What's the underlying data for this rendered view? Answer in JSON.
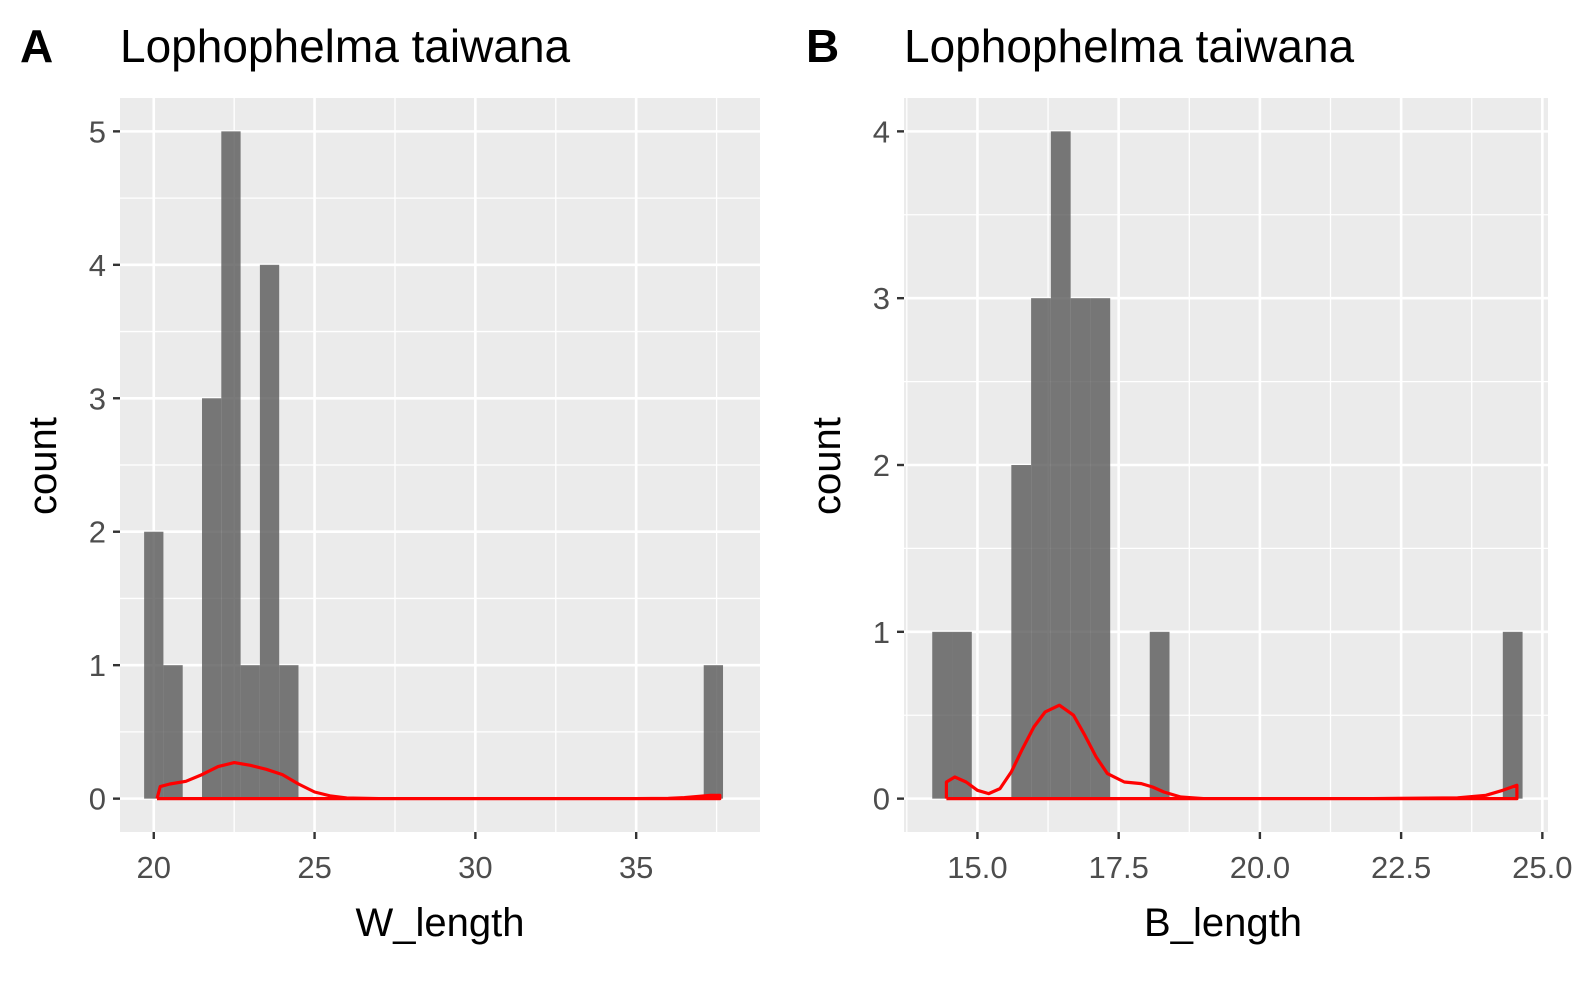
{
  "chart_data": [
    {
      "type": "bar",
      "panel_tag": "A",
      "title": "Lophophelma taiwana",
      "xlabel": "W_length",
      "ylabel": "count",
      "xlim": [
        18.95,
        38.85
      ],
      "ylim": [
        -0.25,
        5.25
      ],
      "x_ticks": [
        20,
        25,
        30,
        35
      ],
      "x_tick_labels": [
        "20",
        "25",
        "30",
        "35"
      ],
      "y_ticks": [
        0,
        1,
        2,
        3,
        4,
        5
      ],
      "y_tick_labels": [
        "0",
        "1",
        "2",
        "3",
        "4",
        "5"
      ],
      "grid": true,
      "background": "#ebebeb",
      "bar_color": "#595959",
      "density_color": "#ff0000",
      "bins": [
        {
          "x0": 19.7,
          "x1": 20.3,
          "count": 2
        },
        {
          "x0": 20.3,
          "x1": 20.9,
          "count": 1
        },
        {
          "x0": 21.5,
          "x1": 22.1,
          "count": 3
        },
        {
          "x0": 22.1,
          "x1": 22.7,
          "count": 5
        },
        {
          "x0": 22.7,
          "x1": 23.3,
          "count": 1
        },
        {
          "x0": 23.3,
          "x1": 23.9,
          "count": 4
        },
        {
          "x0": 23.9,
          "x1": 24.5,
          "count": 1
        },
        {
          "x0": 37.1,
          "x1": 37.7,
          "count": 1
        }
      ],
      "density": {
        "x": [
          20.1,
          20.2,
          20.5,
          21.0,
          21.5,
          22.0,
          22.5,
          23.0,
          23.5,
          24.0,
          24.5,
          25.0,
          25.5,
          26.0,
          27.0,
          30.0,
          35.0,
          36.0,
          36.5,
          37.0,
          37.3,
          37.6,
          37.6,
          20.1
        ],
        "y": [
          0.0,
          0.09,
          0.11,
          0.13,
          0.18,
          0.24,
          0.27,
          0.25,
          0.22,
          0.18,
          0.11,
          0.05,
          0.02,
          0.005,
          0.0,
          0.0,
          0.0,
          0.002,
          0.008,
          0.018,
          0.024,
          0.025,
          0.0,
          0.0
        ]
      }
    },
    {
      "type": "bar",
      "panel_tag": "B",
      "title": "Lophophelma taiwana",
      "xlabel": "B_length",
      "ylabel": "count",
      "xlim": [
        13.7,
        25.1
      ],
      "ylim": [
        -0.2,
        4.2
      ],
      "x_ticks": [
        15.0,
        17.5,
        20.0,
        22.5,
        25.0
      ],
      "x_tick_labels": [
        "15.0",
        "17.5",
        "20.0",
        "22.5",
        "25.0"
      ],
      "y_ticks": [
        0,
        1,
        2,
        3,
        4
      ],
      "y_tick_labels": [
        "0",
        "1",
        "2",
        "3",
        "4"
      ],
      "grid": true,
      "background": "#ebebeb",
      "bar_color": "#595959",
      "density_color": "#ff0000",
      "bins": [
        {
          "x0": 14.2,
          "x1": 14.55,
          "count": 1
        },
        {
          "x0": 14.55,
          "x1": 14.9,
          "count": 1
        },
        {
          "x0": 15.6,
          "x1": 15.95,
          "count": 2
        },
        {
          "x0": 15.95,
          "x1": 16.3,
          "count": 3
        },
        {
          "x0": 16.3,
          "x1": 16.65,
          "count": 4
        },
        {
          "x0": 16.65,
          "x1": 17.0,
          "count": 3
        },
        {
          "x0": 17.0,
          "x1": 17.35,
          "count": 3
        },
        {
          "x0": 18.05,
          "x1": 18.4,
          "count": 1
        },
        {
          "x0": 24.3,
          "x1": 24.65,
          "count": 1
        }
      ],
      "density": {
        "x": [
          14.45,
          14.45,
          14.6,
          14.8,
          15.0,
          15.2,
          15.4,
          15.6,
          15.8,
          16.0,
          16.2,
          16.45,
          16.7,
          16.9,
          17.1,
          17.3,
          17.6,
          17.9,
          18.1,
          18.3,
          18.6,
          19.0,
          20.0,
          22.0,
          23.5,
          24.0,
          24.3,
          24.55,
          24.55,
          14.45
        ],
        "y": [
          0.0,
          0.1,
          0.13,
          0.1,
          0.05,
          0.03,
          0.06,
          0.16,
          0.3,
          0.43,
          0.52,
          0.56,
          0.5,
          0.38,
          0.25,
          0.15,
          0.1,
          0.09,
          0.07,
          0.04,
          0.01,
          0.0,
          0.0,
          0.0,
          0.005,
          0.02,
          0.05,
          0.08,
          0.0,
          0.0
        ]
      }
    }
  ]
}
